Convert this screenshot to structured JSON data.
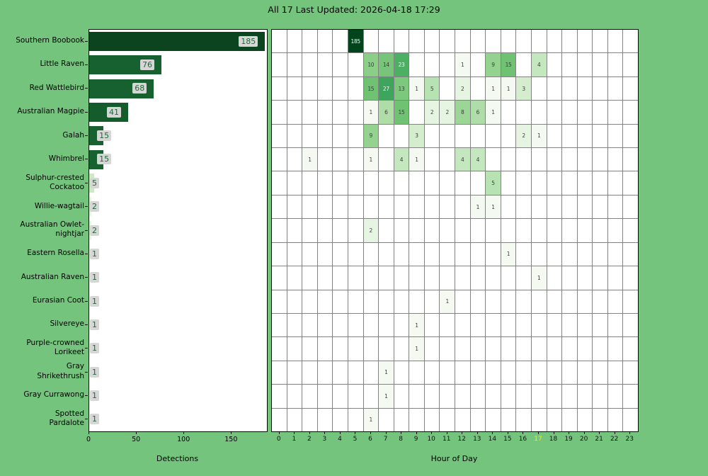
{
  "title": "All 17 Last Updated: 2026-04-18 17:29",
  "colors": {
    "background": "#74c47e",
    "plot_background": "#ffffff",
    "grid": "#828282",
    "axis_text": "#000000",
    "bar_value_text": "#1e6a35",
    "bar_value_box": "#d6d6d6",
    "cell_text_dark": "#3c3c3c",
    "cell_text_light": "#f2f7f2",
    "current_hour_color": "#eef000",
    "white_text_min_value": 23
  },
  "value_colors": {
    "1": "#f4faf1",
    "2": "#e6f5e1",
    "3": "#d4eecd",
    "4": "#c4e8bd",
    "5": "#b7e2b1",
    "6": "#aedda7",
    "8": "#9bd696",
    "9": "#93d28f",
    "10": "#8bce88",
    "13": "#7cc87c",
    "14": "#76c578",
    "15": "#6fc272",
    "23": "#4bb062",
    "27": "#3da65c",
    "185": "#00441b"
  },
  "chart_data": [
    {
      "type": "bar",
      "orientation": "horizontal",
      "xlabel": "Detections",
      "ylabel": "",
      "xticks": [
        0,
        50,
        100,
        150
      ],
      "xlim": [
        0,
        187
      ],
      "species": [
        {
          "name": "Southern Boobook",
          "label_lines": "Southern Boobook",
          "count": 185,
          "bar_color": "#0c4420"
        },
        {
          "name": "Little Raven",
          "label_lines": "Little Raven",
          "count": 76,
          "bar_color": "#176030"
        },
        {
          "name": "Red Wattlebird",
          "label_lines": "Red Wattlebird",
          "count": 68,
          "bar_color": "#176030"
        },
        {
          "name": "Australian Magpie",
          "label_lines": "Australian Magpie",
          "count": 41,
          "bar_color": "#155c2c"
        },
        {
          "name": "Galah",
          "label_lines": "Galah",
          "count": 15,
          "bar_color": "#1a6132"
        },
        {
          "name": "Whimbrel",
          "label_lines": "Whimbrel",
          "count": 15,
          "bar_color": "#1a6132"
        },
        {
          "name": "Sulphur-crested Cockatoo",
          "label_lines": "Sulphur-crested\nCockatoo",
          "count": 5,
          "bar_color": "#cfe9c6"
        },
        {
          "name": "Willie-wagtail",
          "label_lines": "Willie-wagtail",
          "count": 2,
          "bar_color": "#e6f5e1"
        },
        {
          "name": "Australian Owlet-nightjar",
          "label_lines": "Australian Owlet-\nnightjar",
          "count": 2,
          "bar_color": "#e6f5e1"
        },
        {
          "name": "Eastern Rosella",
          "label_lines": "Eastern Rosella",
          "count": 1,
          "bar_color": "#f4faf1"
        },
        {
          "name": "Australian Raven",
          "label_lines": "Australian Raven",
          "count": 1,
          "bar_color": "#f4faf1"
        },
        {
          "name": "Eurasian Coot",
          "label_lines": "Eurasian Coot",
          "count": 1,
          "bar_color": "#f4faf1"
        },
        {
          "name": "Silvereye",
          "label_lines": "Silvereye",
          "count": 1,
          "bar_color": "#f4faf1"
        },
        {
          "name": "Purple-crowned Lorikeet",
          "label_lines": "Purple-crowned\nLorikeet",
          "count": 1,
          "bar_color": "#f4faf1"
        },
        {
          "name": "Gray Shrikethrush",
          "label_lines": "Gray\nShrikethrush",
          "count": 1,
          "bar_color": "#f4faf1"
        },
        {
          "name": "Gray Currawong",
          "label_lines": "Gray Currawong",
          "count": 1,
          "bar_color": "#f4faf1"
        },
        {
          "name": "Spotted Pardalote",
          "label_lines": "Spotted\nPardalote",
          "count": 1,
          "bar_color": "#f4faf1"
        }
      ]
    },
    {
      "type": "heatmap",
      "xlabel": "Hour of Day",
      "hours": [
        0,
        1,
        2,
        3,
        4,
        5,
        6,
        7,
        8,
        9,
        10,
        11,
        12,
        13,
        14,
        15,
        16,
        17,
        18,
        19,
        20,
        21,
        22,
        23
      ],
      "current_hour": 17,
      "rows": [
        {
          "name": "Southern Boobook",
          "cells": [
            {
              "hour": 5,
              "value": 185
            }
          ]
        },
        {
          "name": "Little Raven",
          "cells": [
            {
              "hour": 6,
              "value": 10
            },
            {
              "hour": 7,
              "value": 14
            },
            {
              "hour": 8,
              "value": 23
            },
            {
              "hour": 12,
              "value": 1
            },
            {
              "hour": 14,
              "value": 9
            },
            {
              "hour": 15,
              "value": 15
            },
            {
              "hour": 17,
              "value": 4
            }
          ]
        },
        {
          "name": "Red Wattlebird",
          "cells": [
            {
              "hour": 6,
              "value": 15
            },
            {
              "hour": 7,
              "value": 27
            },
            {
              "hour": 8,
              "value": 13
            },
            {
              "hour": 9,
              "value": 1
            },
            {
              "hour": 10,
              "value": 5
            },
            {
              "hour": 12,
              "value": 2
            },
            {
              "hour": 14,
              "value": 1
            },
            {
              "hour": 15,
              "value": 1
            },
            {
              "hour": 16,
              "value": 3
            }
          ]
        },
        {
          "name": "Australian Magpie",
          "cells": [
            {
              "hour": 6,
              "value": 1
            },
            {
              "hour": 7,
              "value": 6
            },
            {
              "hour": 8,
              "value": 15
            },
            {
              "hour": 10,
              "value": 2
            },
            {
              "hour": 11,
              "value": 2
            },
            {
              "hour": 12,
              "value": 8
            },
            {
              "hour": 13,
              "value": 6
            },
            {
              "hour": 14,
              "value": 1
            }
          ]
        },
        {
          "name": "Galah",
          "cells": [
            {
              "hour": 6,
              "value": 9
            },
            {
              "hour": 9,
              "value": 3
            },
            {
              "hour": 16,
              "value": 2
            },
            {
              "hour": 17,
              "value": 1
            }
          ]
        },
        {
          "name": "Whimbrel",
          "cells": [
            {
              "hour": 2,
              "value": 1
            },
            {
              "hour": 6,
              "value": 1
            },
            {
              "hour": 8,
              "value": 4
            },
            {
              "hour": 9,
              "value": 1
            },
            {
              "hour": 12,
              "value": 4
            },
            {
              "hour": 13,
              "value": 4
            }
          ]
        },
        {
          "name": "Sulphur-crested Cockatoo",
          "cells": [
            {
              "hour": 14,
              "value": 5
            }
          ]
        },
        {
          "name": "Willie-wagtail",
          "cells": [
            {
              "hour": 13,
              "value": 1
            },
            {
              "hour": 14,
              "value": 1
            }
          ]
        },
        {
          "name": "Australian Owlet-nightjar",
          "cells": [
            {
              "hour": 6,
              "value": 2
            }
          ]
        },
        {
          "name": "Eastern Rosella",
          "cells": [
            {
              "hour": 15,
              "value": 1
            }
          ]
        },
        {
          "name": "Australian Raven",
          "cells": [
            {
              "hour": 17,
              "value": 1
            }
          ]
        },
        {
          "name": "Eurasian Coot",
          "cells": [
            {
              "hour": 11,
              "value": 1
            }
          ]
        },
        {
          "name": "Silvereye",
          "cells": [
            {
              "hour": 9,
              "value": 1
            }
          ]
        },
        {
          "name": "Purple-crowned Lorikeet",
          "cells": [
            {
              "hour": 9,
              "value": 1
            }
          ]
        },
        {
          "name": "Gray Shrikethrush",
          "cells": [
            {
              "hour": 7,
              "value": 1
            }
          ]
        },
        {
          "name": "Gray Currawong",
          "cells": [
            {
              "hour": 7,
              "value": 1
            }
          ]
        },
        {
          "name": "Spotted Pardalote",
          "cells": [
            {
              "hour": 6,
              "value": 1
            }
          ]
        }
      ]
    }
  ]
}
